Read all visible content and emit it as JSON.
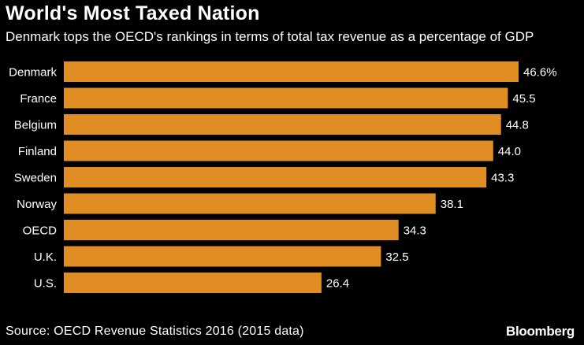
{
  "chart_data": {
    "type": "bar",
    "orientation": "horizontal",
    "title": "World's Most Taxed Nation",
    "subtitle": "Denmark tops the OECD's rankings in terms of total tax revenue as a percentage of GDP",
    "categories": [
      "Denmark",
      "France",
      "Belgium",
      "Finland",
      "Sweden",
      "Norway",
      "OECD",
      "U.K.",
      "U.S."
    ],
    "values": [
      46.6,
      45.5,
      44.8,
      44.0,
      43.3,
      38.1,
      34.3,
      32.5,
      26.4
    ],
    "value_labels": [
      "46.6%",
      "45.5",
      "44.8",
      "44.0",
      "43.3",
      "38.1",
      "34.3",
      "32.5",
      "26.4"
    ],
    "xlim": [
      0,
      46.6
    ],
    "bar_color": "#e08e24",
    "grid": false
  },
  "footer": {
    "source": "Source: OECD Revenue Statistics 2016 (2015 data)",
    "brand": "Bloomberg"
  },
  "colors": {
    "background": "#000000",
    "text": "#ffffff"
  }
}
